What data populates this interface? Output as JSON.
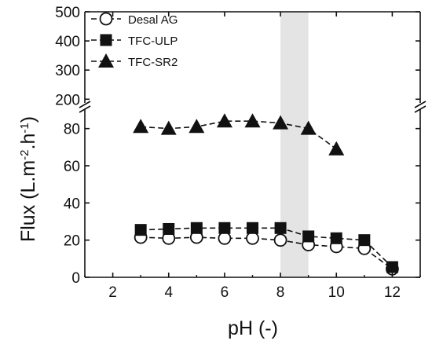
{
  "chart_data": {
    "type": "line",
    "title": "",
    "xlabel": "pH (-)",
    "ylabel": {
      "base": "Flux (L.m",
      "exp1": "-2",
      "mid": ".h",
      "exp2": "-1",
      "end": ")"
    },
    "xlim": [
      1,
      13
    ],
    "x_ticks": [
      2,
      4,
      6,
      8,
      10,
      12
    ],
    "y_axis": {
      "broken": true,
      "lower": {
        "range": [
          0,
          90
        ],
        "ticks": [
          0,
          20,
          40,
          60,
          80
        ]
      },
      "upper": {
        "range": [
          190,
          500
        ],
        "ticks": [
          200,
          300,
          400,
          500
        ]
      }
    },
    "shaded_band_x": [
      8,
      9
    ],
    "shaded_band_color": "#e4e4e4",
    "legend_position": "top-left",
    "series": [
      {
        "name": "Desal AG",
        "marker": "circle-open",
        "x": [
          3,
          4,
          5,
          6,
          7,
          8,
          9,
          10,
          11,
          12
        ],
        "y": [
          21.5,
          21,
          21.5,
          21,
          21,
          20,
          17.5,
          16.5,
          15.5,
          4.5
        ]
      },
      {
        "name": "TFC-ULP",
        "marker": "square-filled",
        "x": [
          3,
          4,
          5,
          6,
          7,
          8,
          9,
          10,
          11,
          12
        ],
        "y": [
          25.5,
          26,
          26.5,
          26.5,
          26.5,
          26.5,
          22,
          21,
          20,
          5.5
        ]
      },
      {
        "name": "TFC-SR2",
        "marker": "triangle-filled",
        "x": [
          3,
          4,
          5,
          6,
          7,
          8,
          9,
          10
        ],
        "y": [
          81,
          80,
          81,
          84,
          84,
          83,
          80,
          69
        ]
      }
    ]
  }
}
